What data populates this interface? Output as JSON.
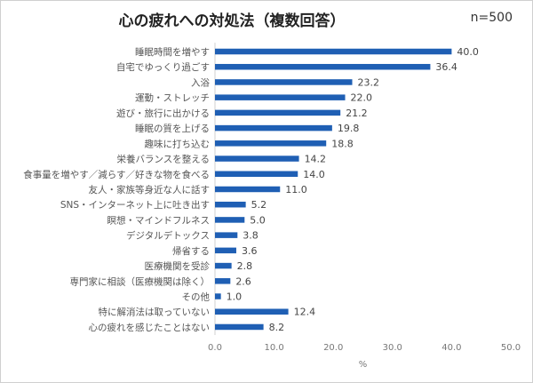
{
  "chart_data": {
    "type": "bar",
    "orientation": "horizontal",
    "title": "心の疲れへの対処法（複数回答）",
    "sample_note": "n=500",
    "xlabel": "%",
    "xlim": [
      0,
      50
    ],
    "xticks": [
      "0.0",
      "10.0",
      "20.0",
      "30.0",
      "40.0",
      "50.0"
    ],
    "grid": false,
    "bar_color": "#1f5fb4",
    "categories": [
      "睡眠時間を増やす",
      "自宅でゆっくり過ごす",
      "入浴",
      "運動・ストレッチ",
      "遊び・旅行に出かける",
      "睡眠の質を上げる",
      "趣味に打ち込む",
      "栄養バランスを整える",
      "食事量を増やす／減らす／好きな物を食べる",
      "友人・家族等身近な人に話す",
      "SNS・インターネット上に吐き出す",
      "瞑想・マインドフルネス",
      "デジタルデトックス",
      "帰省する",
      "医療機関を受診",
      "専門家に相談（医療機関は除く）",
      "その他",
      "特に解消法は取っていない",
      "心の疲れを感じたことはない"
    ],
    "values": [
      40.0,
      36.4,
      23.2,
      22.0,
      21.2,
      19.8,
      18.8,
      14.2,
      14.0,
      11.0,
      5.2,
      5.0,
      3.8,
      3.6,
      2.8,
      2.6,
      1.0,
      12.4,
      8.2
    ]
  }
}
